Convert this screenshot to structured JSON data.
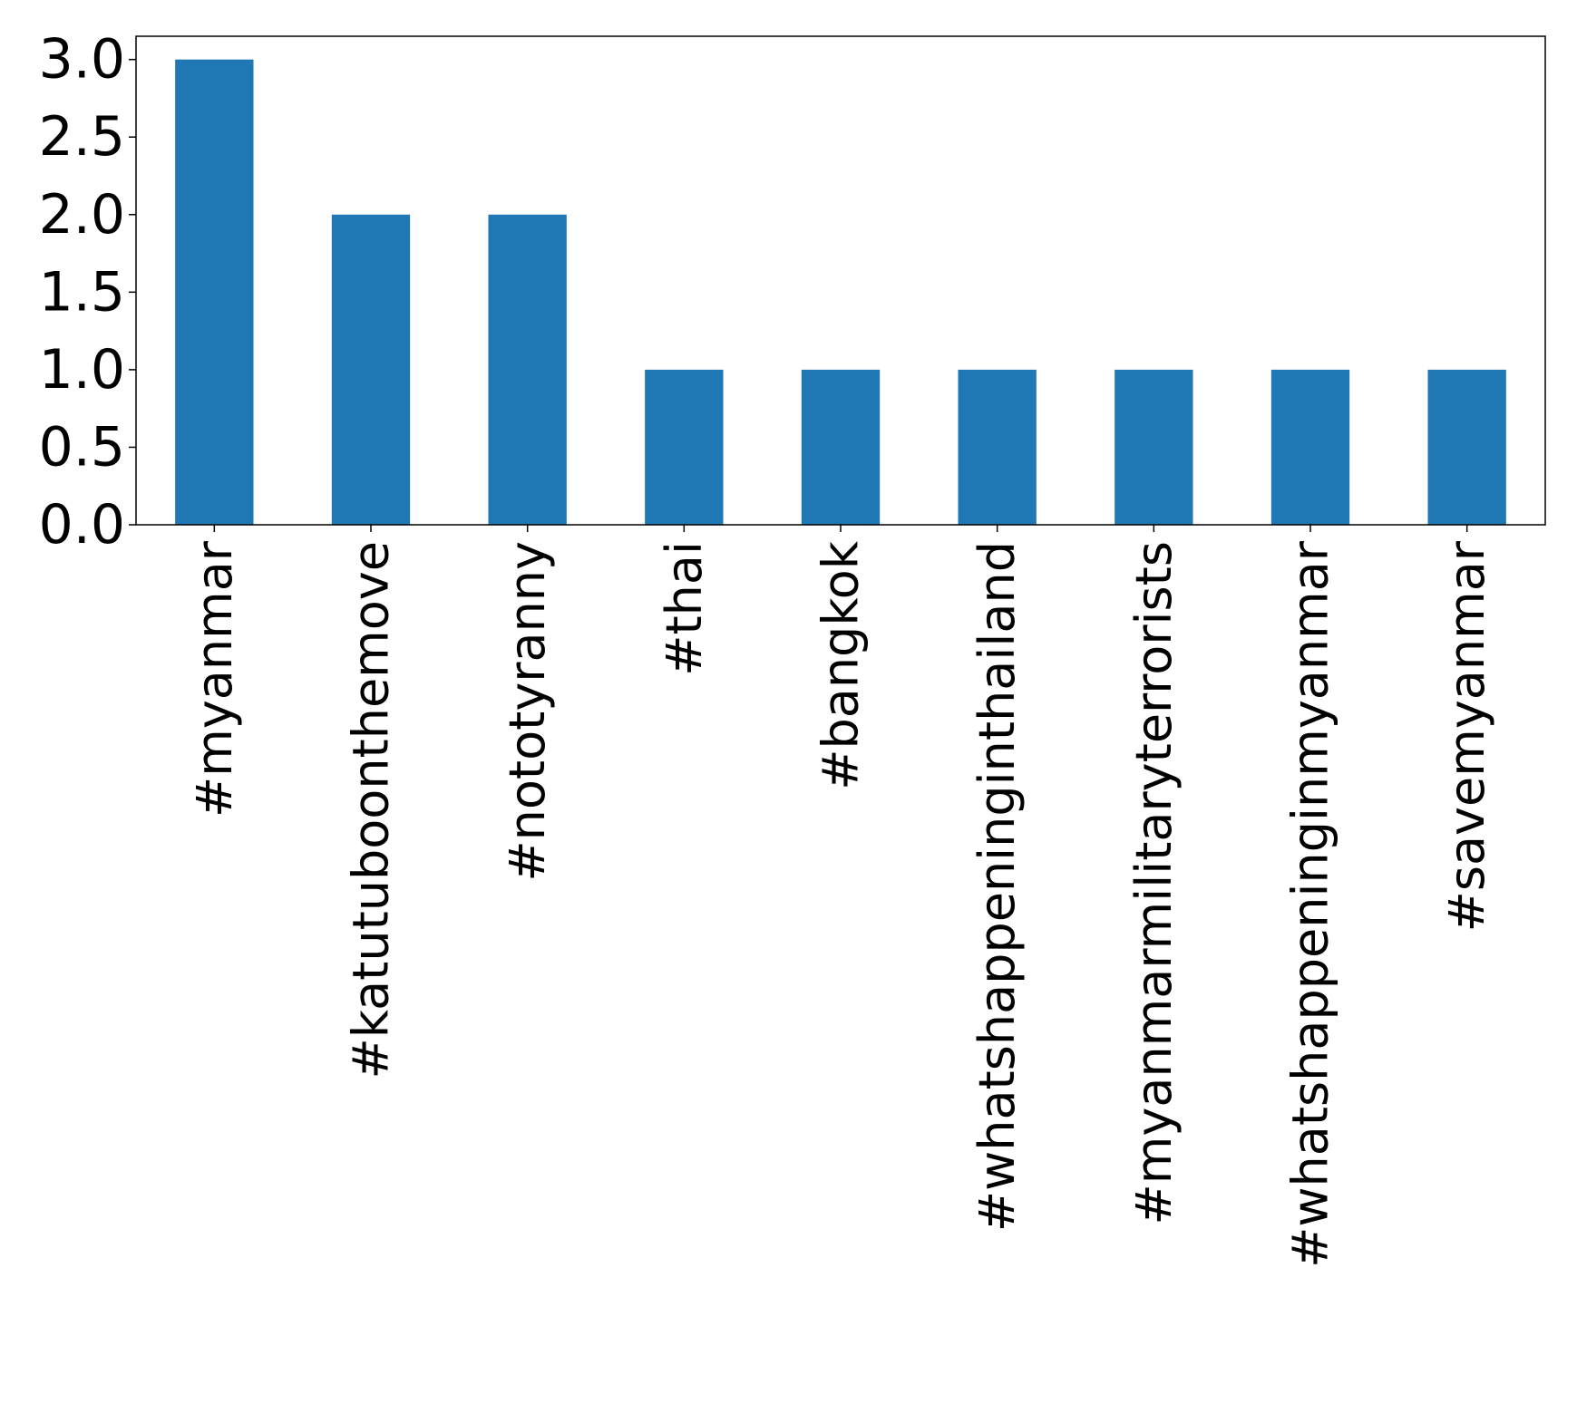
{
  "chart_data": {
    "type": "bar",
    "categories": [
      "#myanmar",
      "#katutuboonthemove",
      "#nototyranny",
      "#thai",
      "#bangkok",
      "#whatshappeninginthailand",
      "#myanmarmilitaryterrorists",
      "#whatshappeninginmyanmar",
      "#savemyanmar"
    ],
    "values": [
      3,
      2,
      2,
      1,
      1,
      1,
      1,
      1,
      1
    ],
    "yticks": [
      "0.0",
      "0.5",
      "1.0",
      "1.5",
      "2.0",
      "2.5",
      "3.0"
    ],
    "ylim": [
      0,
      3.15
    ],
    "bar_color": "#1f77b4",
    "grid": false,
    "legend": "none"
  }
}
